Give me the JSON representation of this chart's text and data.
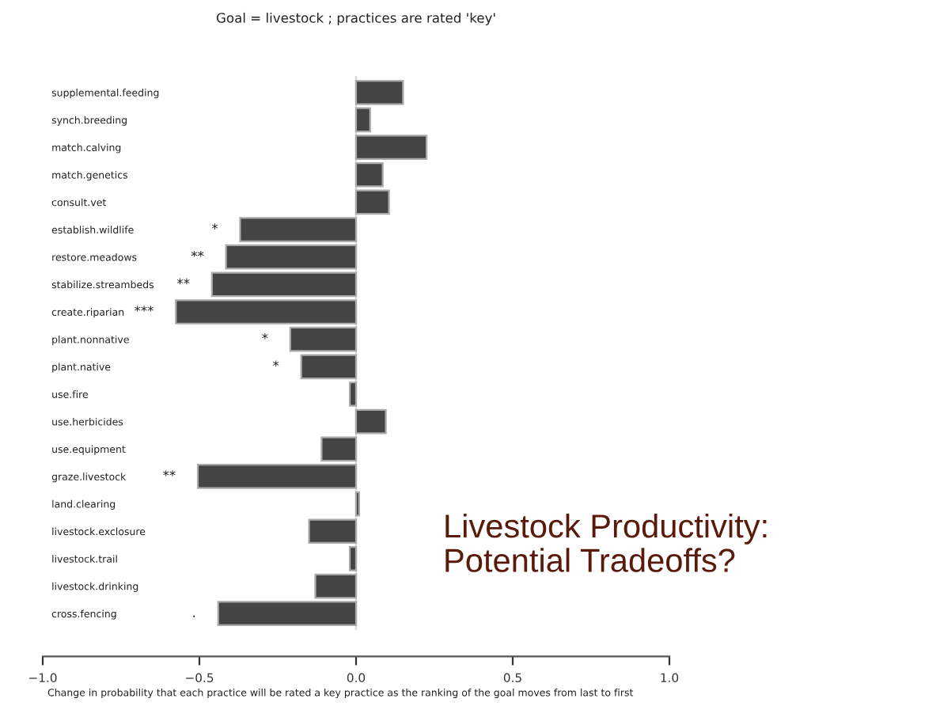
{
  "chart_data": {
    "type": "bar",
    "orientation": "horizontal",
    "title": "Goal = livestock ; practices are rated 'key'",
    "xlabel": "Change in probability that each practice will be rated a key practice as the ranking of the goal moves from last to first",
    "categories": [
      "supplemental.feeding",
      "synch.breeding",
      "match.calving",
      "match.genetics",
      "consult.vet",
      "establish.wildlife",
      "restore.meadows",
      "stabilize.streambeds",
      "create.riparian",
      "plant.nonnative",
      "plant.native",
      "use.fire",
      "use.herbicides",
      "use.equipment",
      "graze.livestock",
      "land.clearing",
      "livestock.exclosure",
      "livestock.trail",
      "livestock.drinking",
      "cross.fencing"
    ],
    "values": [
      0.15,
      0.045,
      0.225,
      0.085,
      0.105,
      -0.37,
      -0.415,
      -0.46,
      -0.575,
      -0.21,
      -0.175,
      -0.02,
      0.095,
      -0.11,
      -0.505,
      0.01,
      -0.15,
      -0.02,
      -0.13,
      -0.44
    ],
    "color": "#444444",
    "xlim": [
      -1.0,
      1.0
    ],
    "xticks": [
      {
        "value": -1.0,
        "label": "−1.0"
      },
      {
        "value": -0.5,
        "label": "−0.5"
      },
      {
        "value": 0.0,
        "label": "0.0"
      },
      {
        "value": 0.5,
        "label": "0.5"
      },
      {
        "value": 1.0,
        "label": "1.0"
      }
    ],
    "ref_lines": [
      {
        "axis": "x",
        "value": 0.0,
        "label": null,
        "color": "#dddddd"
      }
    ],
    "value_labels": [
      null,
      null,
      null,
      null,
      null,
      "*",
      "**",
      "**",
      "***",
      "*",
      "*",
      null,
      null,
      null,
      "**",
      null,
      null,
      null,
      null,
      "."
    ],
    "annotations": [
      "Livestock Productivity:\nPotential Tradeoffs?"
    ],
    "grid": false
  }
}
